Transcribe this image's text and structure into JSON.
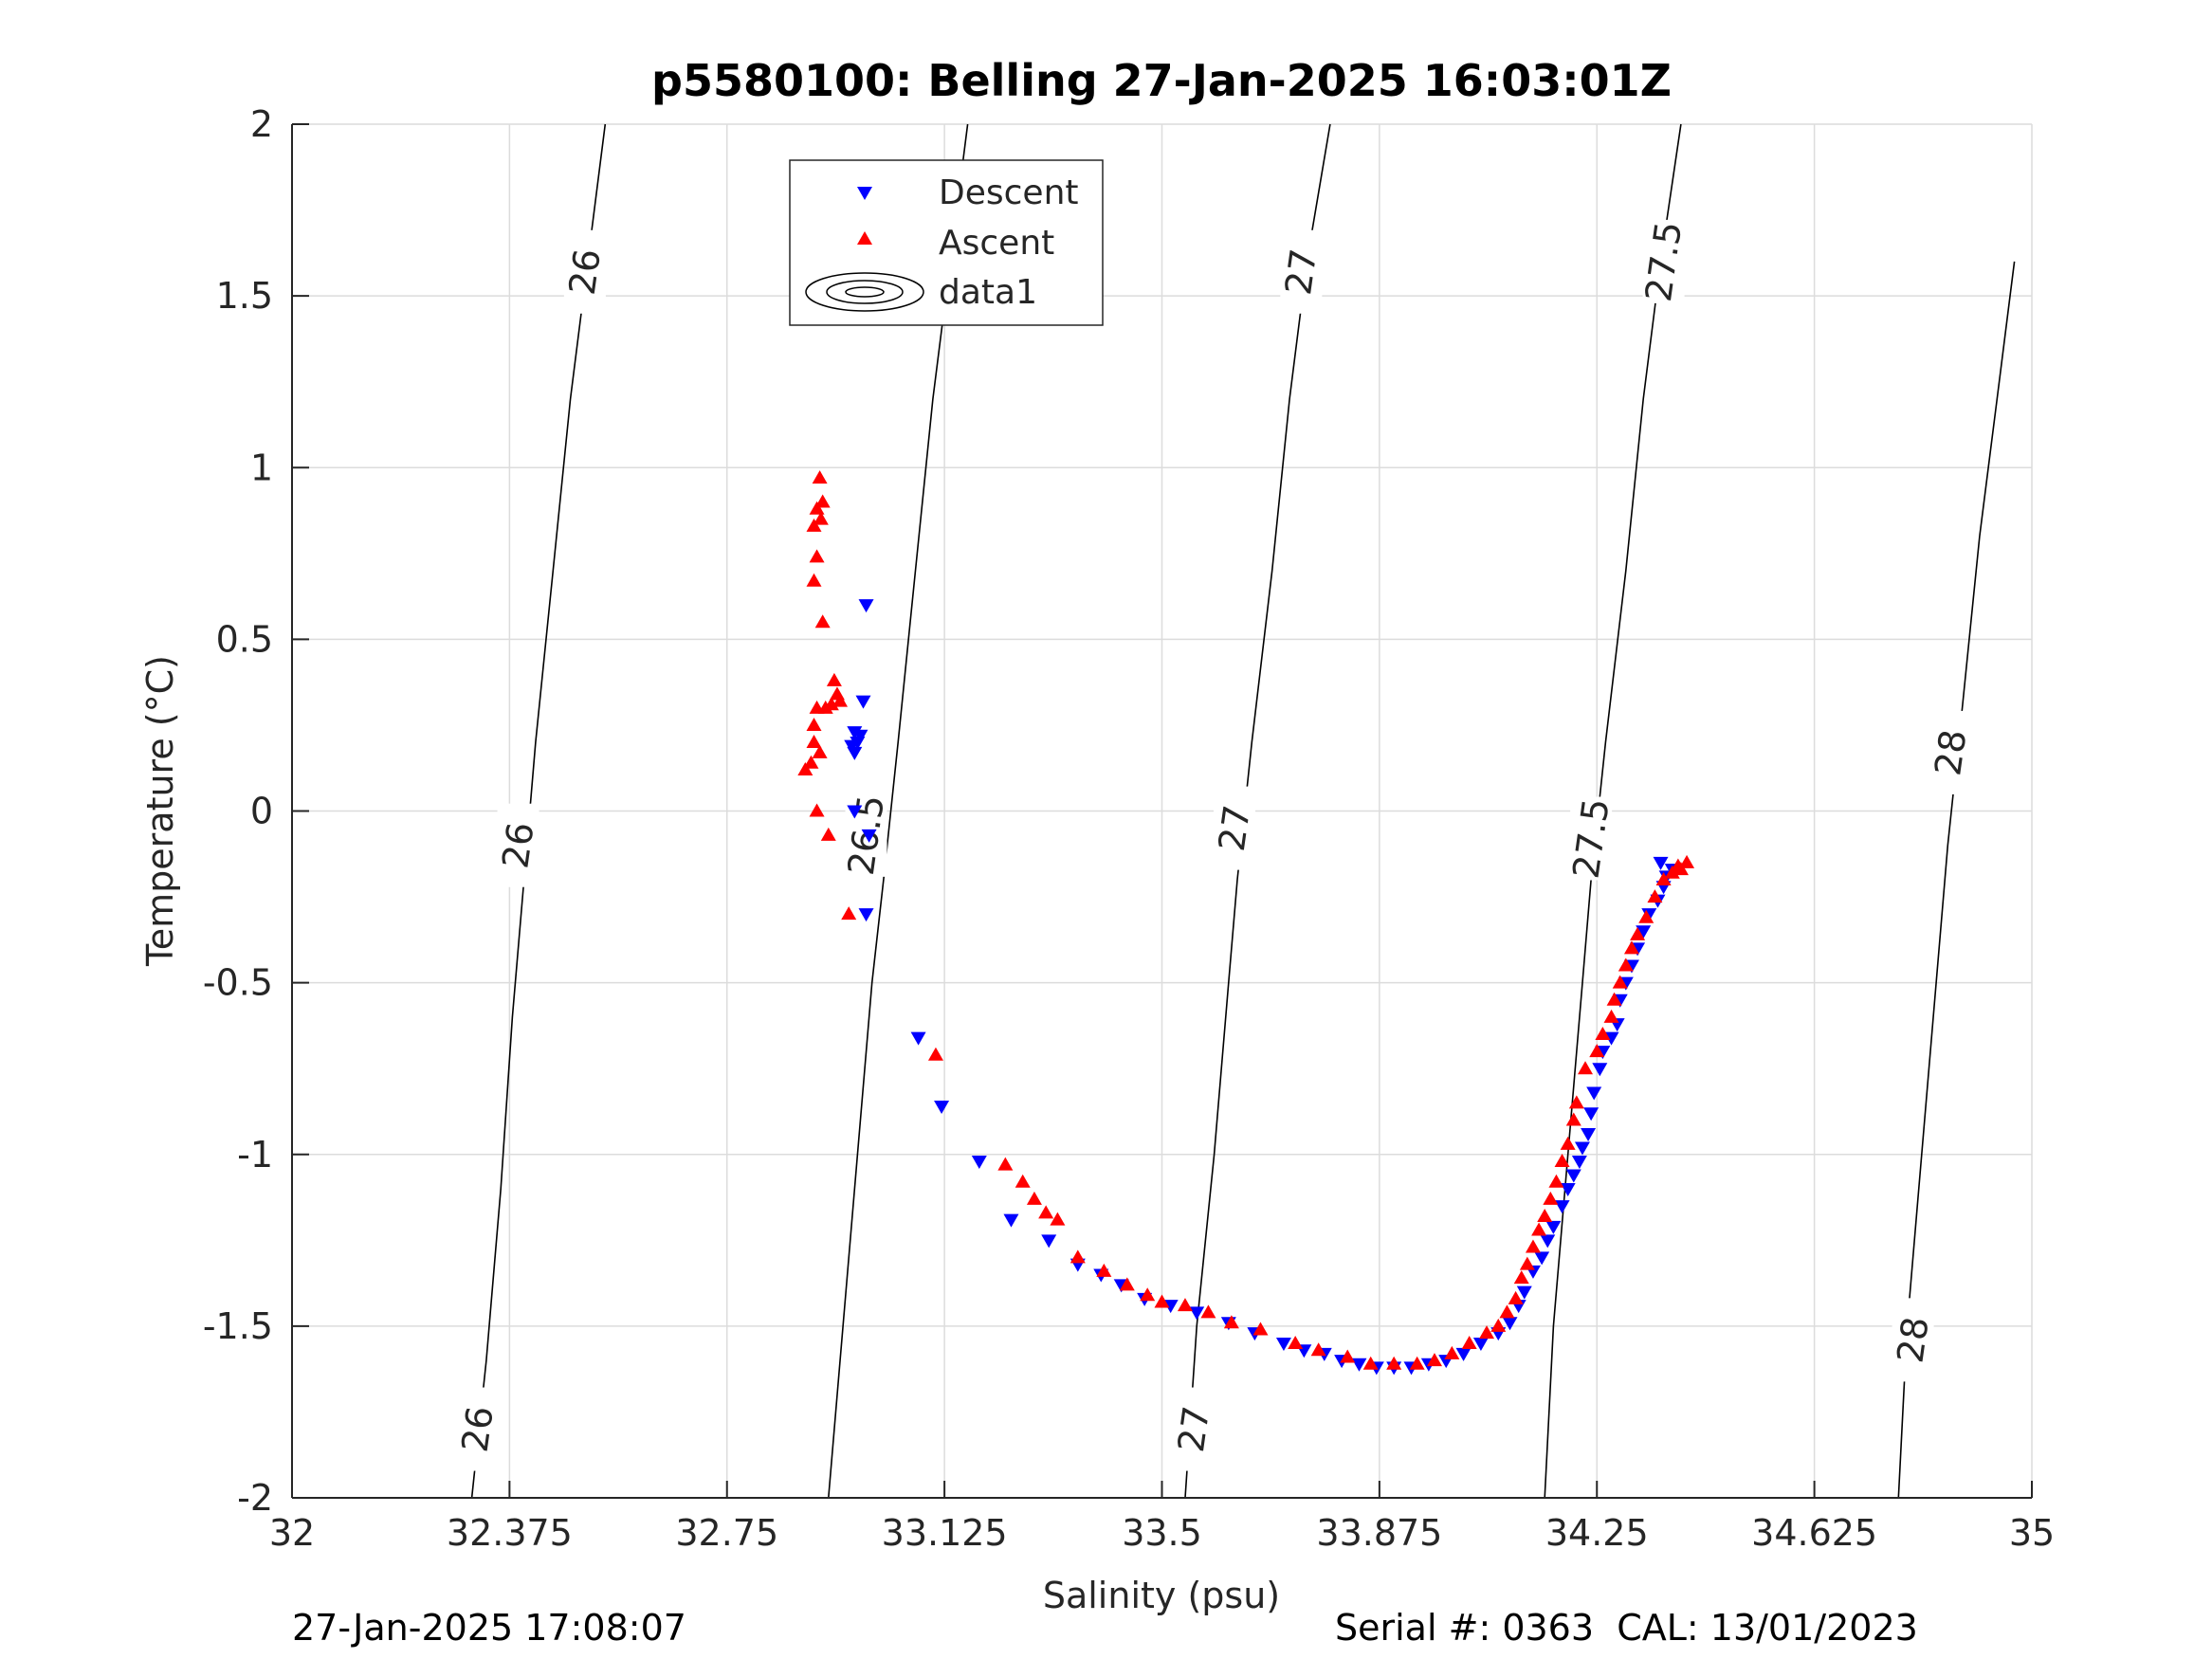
{
  "chart_data": {
    "type": "scatter",
    "title": "p5580100: Belling 27-Jan-2025 16:03:01Z",
    "xlabel": "Salinity (psu)",
    "ylabel": "Temperature (°C)",
    "xlim": [
      32,
      35
    ],
    "ylim": [
      -2,
      2
    ],
    "xticks": [
      32,
      32.375,
      32.75,
      33.125,
      33.5,
      33.875,
      34.25,
      34.625,
      35
    ],
    "xtick_labels": [
      "32",
      "32.375",
      "32.75",
      "33.125",
      "33.5",
      "33.875",
      "34.25",
      "34.625",
      "35"
    ],
    "yticks": [
      2,
      1.5,
      1,
      0.5,
      0,
      -0.5,
      -1,
      -1.5,
      -2
    ],
    "ytick_labels": [
      "2",
      "1.5",
      "1",
      "0.5",
      "0",
      "-0.5",
      "-1",
      "-1.5",
      "-2"
    ],
    "grid": true,
    "legend_position": "top-center",
    "legend": [
      "Descent",
      "Ascent",
      "data1"
    ],
    "colors": {
      "descent": "#0000ff",
      "ascent": "#ff0000",
      "contour": "#000000",
      "grid": "#dcdcdc"
    },
    "contours": [
      {
        "level": "26",
        "points": [
          [
            32.31,
            -2
          ],
          [
            32.335,
            -1.6
          ],
          [
            32.36,
            -1.1
          ],
          [
            32.38,
            -0.6
          ],
          [
            32.4,
            -0.2
          ],
          [
            32.42,
            0.2
          ],
          [
            32.45,
            0.7
          ],
          [
            32.48,
            1.2
          ],
          [
            32.51,
            1.6
          ],
          [
            32.54,
            2
          ]
        ],
        "labels": [
          [
            32.32,
            -1.8
          ],
          [
            32.39,
            -0.1
          ],
          [
            32.505,
            1.57
          ]
        ]
      },
      {
        "level": "26.5",
        "points": [
          [
            32.925,
            -2
          ],
          [
            32.95,
            -1.5
          ],
          [
            32.975,
            -1
          ],
          [
            33,
            -0.5
          ],
          [
            33.02,
            -0.2
          ],
          [
            33.045,
            0.2
          ],
          [
            33.075,
            0.7
          ],
          [
            33.105,
            1.2
          ],
          [
            33.135,
            1.6
          ],
          [
            33.165,
            2
          ]
        ],
        "labels": [
          [
            32.99,
            -0.07
          ],
          [
            33.11,
            1.6
          ]
        ]
      },
      {
        "level": "27",
        "points": [
          [
            33.54,
            -2
          ],
          [
            33.56,
            -1.5
          ],
          [
            33.59,
            -1
          ],
          [
            33.615,
            -0.5
          ],
          [
            33.63,
            -0.2
          ],
          [
            33.655,
            0.2
          ],
          [
            33.69,
            0.7
          ],
          [
            33.72,
            1.2
          ],
          [
            33.75,
            1.6
          ],
          [
            33.79,
            2
          ]
        ],
        "labels": [
          [
            33.555,
            -1.8
          ],
          [
            33.625,
            -0.05
          ],
          [
            33.74,
            1.57
          ]
        ]
      },
      {
        "level": "27.5",
        "points": [
          [
            34.16,
            -2
          ],
          [
            34.175,
            -1.5
          ],
          [
            34.2,
            -1
          ],
          [
            34.225,
            -0.5
          ],
          [
            34.24,
            -0.2
          ],
          [
            34.265,
            0.2
          ],
          [
            34.3,
            0.7
          ],
          [
            34.33,
            1.2
          ],
          [
            34.36,
            1.6
          ],
          [
            34.395,
            2
          ]
        ],
        "labels": [
          [
            34.24,
            -0.08
          ],
          [
            34.365,
            1.6
          ]
        ]
      },
      {
        "level": "28",
        "points": [
          [
            34.77,
            -2
          ],
          [
            34.785,
            -1.5
          ],
          [
            34.81,
            -1
          ],
          [
            34.835,
            -0.5
          ],
          [
            34.855,
            -0.1
          ],
          [
            34.88,
            0.3
          ],
          [
            34.91,
            0.8
          ],
          [
            34.94,
            1.2
          ],
          [
            34.97,
            1.6
          ]
        ],
        "labels": [
          [
            34.795,
            -1.54
          ],
          [
            34.86,
            0.17
          ]
        ]
      }
    ],
    "series": [
      {
        "name": "Descent",
        "marker": "triangle-down",
        "points": [
          [
            32.99,
            0.6
          ],
          [
            32.985,
            0.32
          ],
          [
            32.97,
            0.23
          ],
          [
            32.98,
            0.22
          ],
          [
            32.975,
            0.2
          ],
          [
            32.97,
            0.17
          ],
          [
            32.965,
            0.19
          ],
          [
            32.97,
            0
          ],
          [
            32.995,
            -0.07
          ],
          [
            32.99,
            -0.3
          ],
          [
            33.08,
            -0.66
          ],
          [
            33.12,
            -0.86
          ],
          [
            33.185,
            -1.02
          ],
          [
            33.24,
            -1.19
          ],
          [
            33.305,
            -1.25
          ],
          [
            33.355,
            -1.32
          ],
          [
            33.395,
            -1.35
          ],
          [
            33.43,
            -1.38
          ],
          [
            33.47,
            -1.42
          ],
          [
            33.515,
            -1.44
          ],
          [
            33.56,
            -1.46
          ],
          [
            33.615,
            -1.49
          ],
          [
            33.66,
            -1.52
          ],
          [
            33.71,
            -1.55
          ],
          [
            33.745,
            -1.57
          ],
          [
            33.78,
            -1.58
          ],
          [
            33.81,
            -1.6
          ],
          [
            33.84,
            -1.61
          ],
          [
            33.87,
            -1.62
          ],
          [
            33.9,
            -1.62
          ],
          [
            33.93,
            -1.62
          ],
          [
            33.96,
            -1.61
          ],
          [
            33.99,
            -1.6
          ],
          [
            34.02,
            -1.58
          ],
          [
            34.05,
            -1.55
          ],
          [
            34.08,
            -1.52
          ],
          [
            34.1,
            -1.49
          ],
          [
            34.115,
            -1.44
          ],
          [
            34.125,
            -1.4
          ],
          [
            34.14,
            -1.34
          ],
          [
            34.155,
            -1.3
          ],
          [
            34.165,
            -1.25
          ],
          [
            34.175,
            -1.21
          ],
          [
            34.19,
            -1.15
          ],
          [
            34.2,
            -1.1
          ],
          [
            34.21,
            -1.06
          ],
          [
            34.22,
            -1.02
          ],
          [
            34.225,
            -0.98
          ],
          [
            34.235,
            -0.94
          ],
          [
            34.24,
            -0.88
          ],
          [
            34.245,
            -0.82
          ],
          [
            34.255,
            -0.75
          ],
          [
            34.26,
            -0.7
          ],
          [
            34.275,
            -0.66
          ],
          [
            34.285,
            -0.62
          ],
          [
            34.29,
            -0.55
          ],
          [
            34.3,
            -0.5
          ],
          [
            34.31,
            -0.45
          ],
          [
            34.32,
            -0.4
          ],
          [
            34.33,
            -0.35
          ],
          [
            34.34,
            -0.3
          ],
          [
            34.355,
            -0.26
          ],
          [
            34.365,
            -0.22
          ],
          [
            34.37,
            -0.19
          ],
          [
            34.36,
            -0.15
          ],
          [
            34.38,
            -0.17
          ]
        ]
      },
      {
        "name": "Ascent",
        "marker": "triangle-up",
        "points": [
          [
            32.91,
            0.97
          ],
          [
            32.915,
            0.9
          ],
          [
            32.905,
            0.88
          ],
          [
            32.912,
            0.85
          ],
          [
            32.9,
            0.83
          ],
          [
            32.905,
            0.74
          ],
          [
            32.9,
            0.67
          ],
          [
            32.915,
            0.55
          ],
          [
            32.935,
            0.38
          ],
          [
            32.94,
            0.34
          ],
          [
            32.945,
            0.32
          ],
          [
            32.93,
            0.31
          ],
          [
            32.92,
            0.3
          ],
          [
            32.905,
            0.3
          ],
          [
            32.9,
            0.25
          ],
          [
            32.9,
            0.2
          ],
          [
            32.91,
            0.17
          ],
          [
            32.895,
            0.14
          ],
          [
            32.885,
            0.12
          ],
          [
            32.905,
            0
          ],
          [
            32.925,
            -0.07
          ],
          [
            32.96,
            -0.3
          ],
          [
            33.11,
            -0.71
          ],
          [
            33.23,
            -1.03
          ],
          [
            33.26,
            -1.08
          ],
          [
            33.28,
            -1.13
          ],
          [
            33.3,
            -1.17
          ],
          [
            33.32,
            -1.19
          ],
          [
            33.355,
            -1.3
          ],
          [
            33.4,
            -1.34
          ],
          [
            33.44,
            -1.38
          ],
          [
            33.475,
            -1.41
          ],
          [
            33.5,
            -1.43
          ],
          [
            33.54,
            -1.44
          ],
          [
            33.58,
            -1.46
          ],
          [
            33.62,
            -1.49
          ],
          [
            33.67,
            -1.51
          ],
          [
            33.73,
            -1.55
          ],
          [
            33.77,
            -1.57
          ],
          [
            33.82,
            -1.59
          ],
          [
            33.86,
            -1.61
          ],
          [
            33.9,
            -1.61
          ],
          [
            33.94,
            -1.61
          ],
          [
            33.97,
            -1.6
          ],
          [
            34,
            -1.58
          ],
          [
            34.03,
            -1.55
          ],
          [
            34.06,
            -1.52
          ],
          [
            34.08,
            -1.5
          ],
          [
            34.095,
            -1.46
          ],
          [
            34.11,
            -1.42
          ],
          [
            34.12,
            -1.36
          ],
          [
            34.13,
            -1.32
          ],
          [
            34.14,
            -1.27
          ],
          [
            34.15,
            -1.22
          ],
          [
            34.16,
            -1.18
          ],
          [
            34.17,
            -1.13
          ],
          [
            34.18,
            -1.08
          ],
          [
            34.19,
            -1.02
          ],
          [
            34.2,
            -0.97
          ],
          [
            34.21,
            -0.9
          ],
          [
            34.215,
            -0.85
          ],
          [
            34.23,
            -0.75
          ],
          [
            34.25,
            -0.7
          ],
          [
            34.26,
            -0.65
          ],
          [
            34.275,
            -0.6
          ],
          [
            34.28,
            -0.55
          ],
          [
            34.29,
            -0.5
          ],
          [
            34.3,
            -0.45
          ],
          [
            34.31,
            -0.4
          ],
          [
            34.32,
            -0.36
          ],
          [
            34.335,
            -0.31
          ],
          [
            34.35,
            -0.25
          ],
          [
            34.365,
            -0.2
          ],
          [
            34.38,
            -0.18
          ],
          [
            34.395,
            -0.17
          ],
          [
            34.405,
            -0.15
          ],
          [
            34.39,
            -0.16
          ]
        ]
      }
    ]
  },
  "footer": {
    "timestamp": "27-Jan-2025 17:08:07",
    "serial": "Serial #: 0363  CAL: 13/01/2023"
  }
}
